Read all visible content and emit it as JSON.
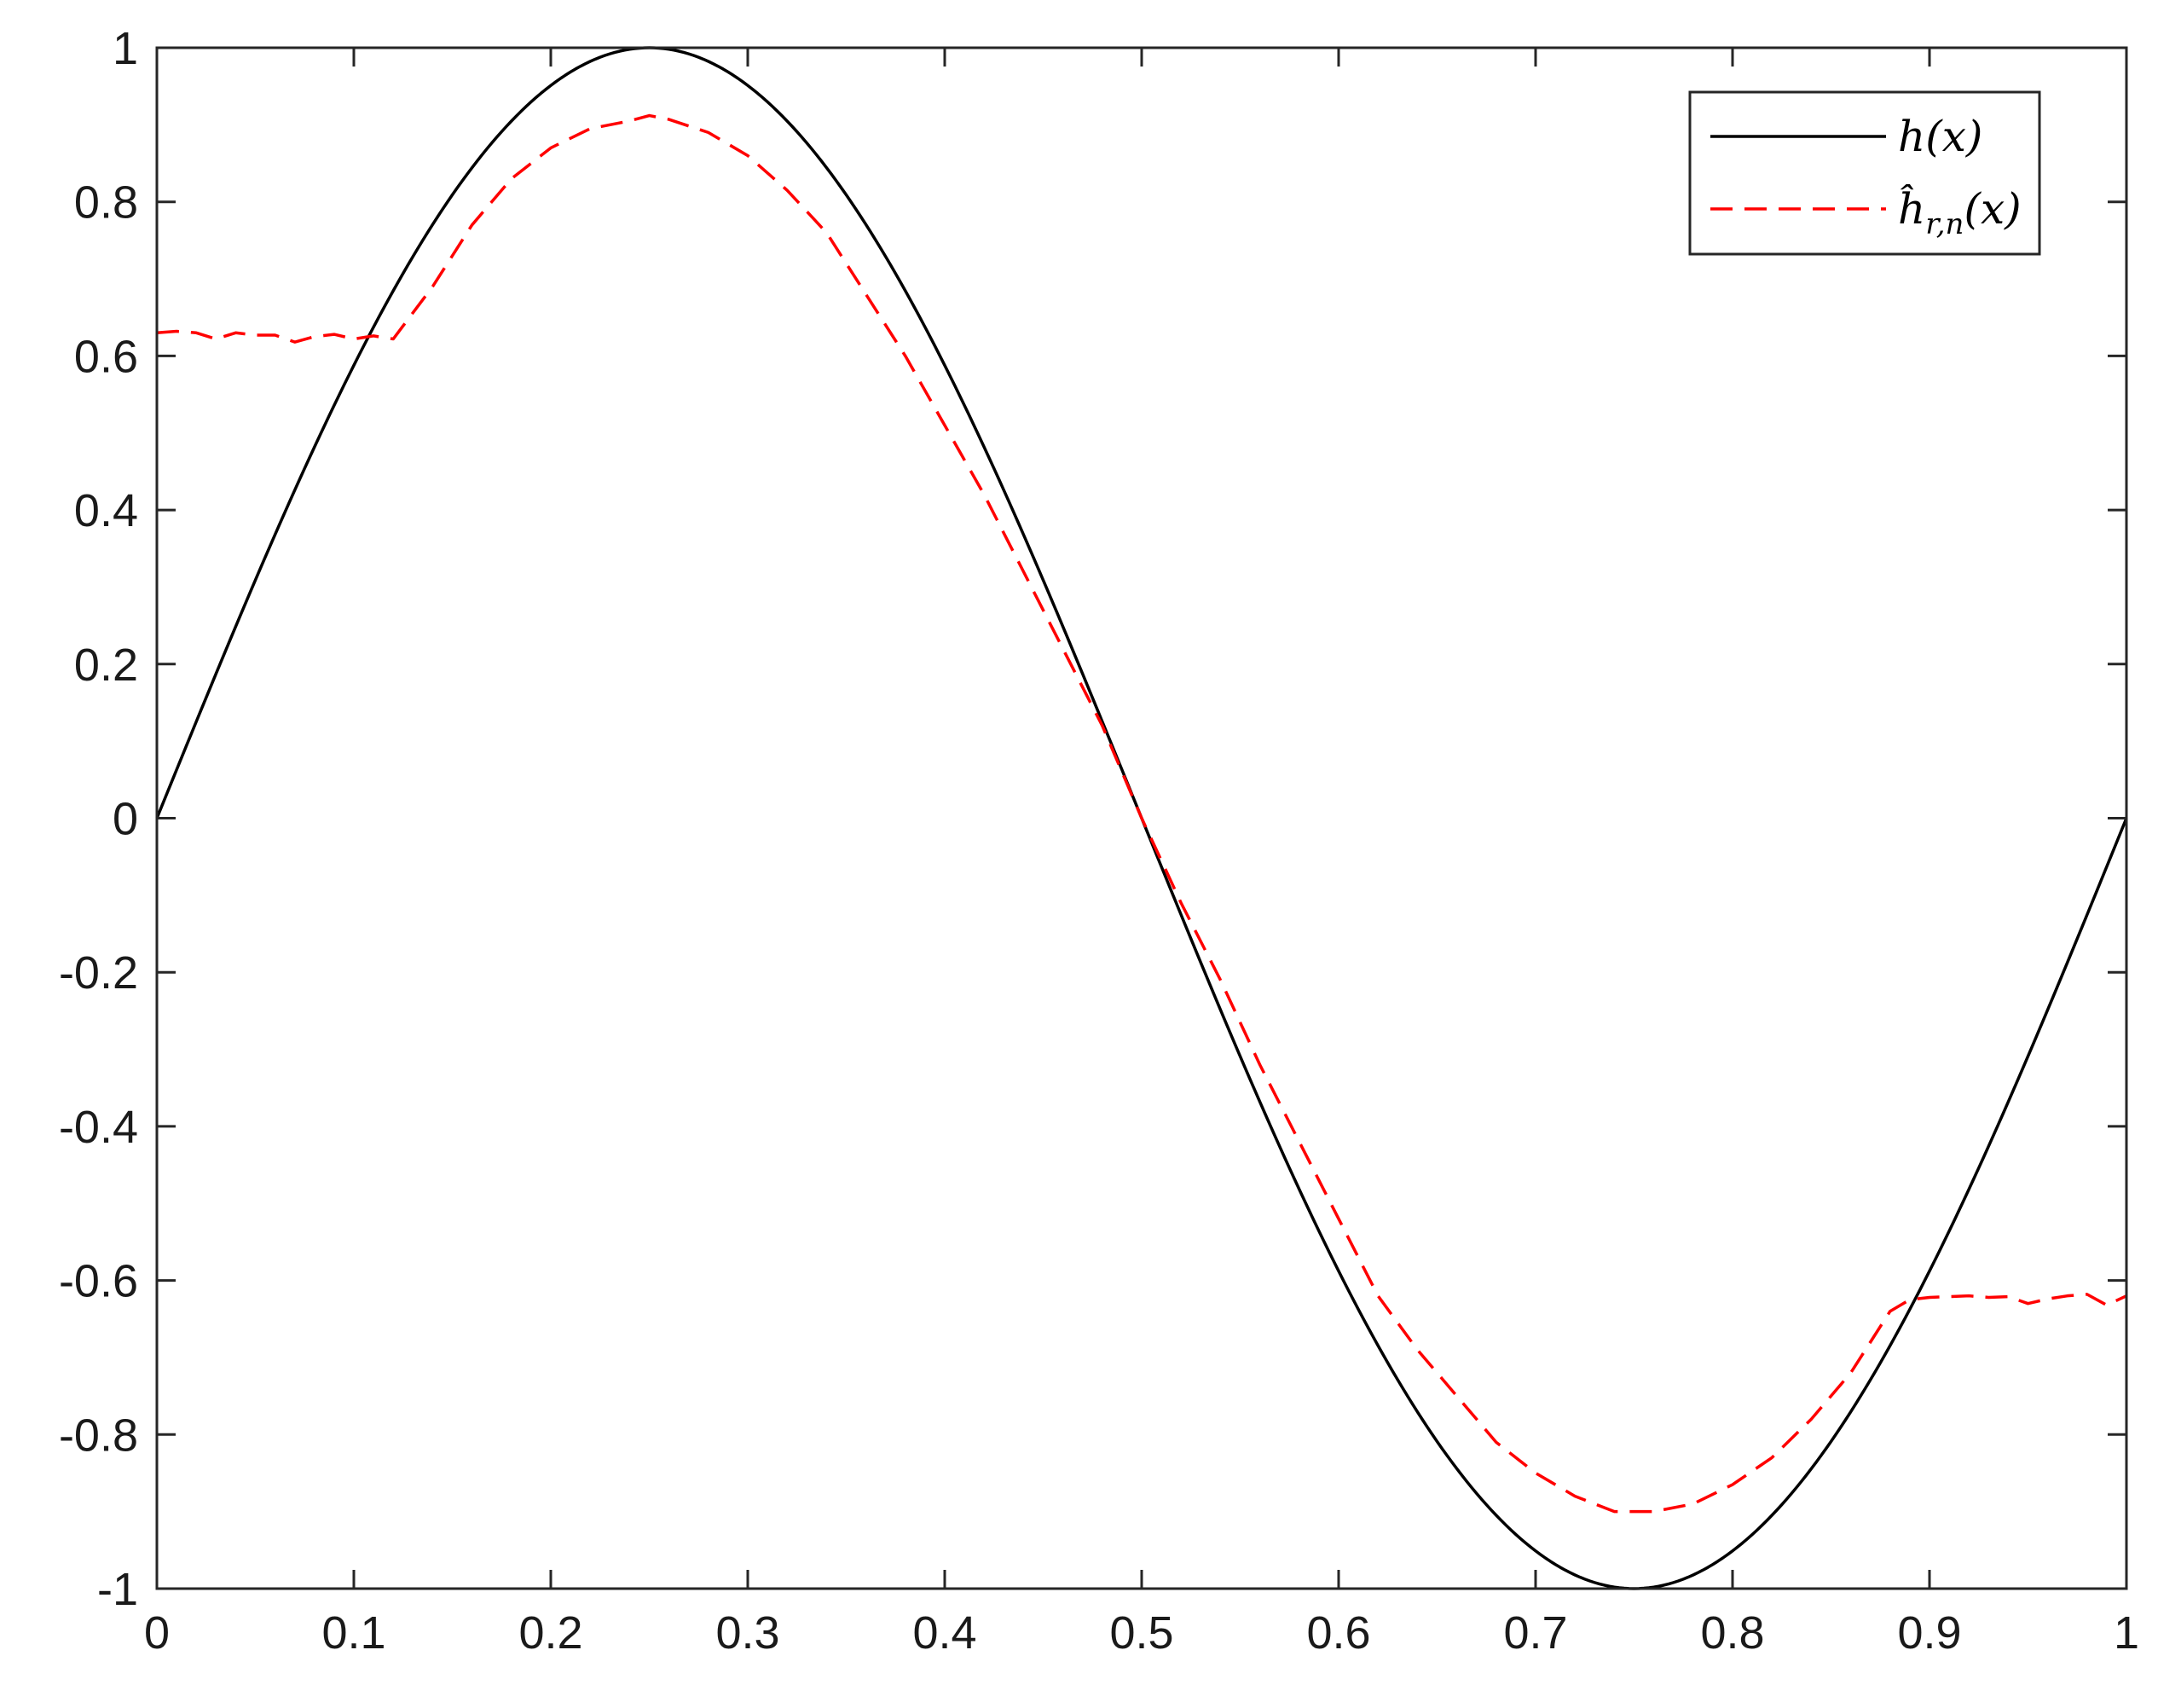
{
  "chart_data": {
    "type": "line",
    "title": "",
    "xlabel": "",
    "ylabel": "",
    "xlim": [
      0,
      1
    ],
    "ylim": [
      -1,
      1
    ],
    "grid": false,
    "legend_position": "top-right",
    "x_ticks": [
      "0",
      "0.1",
      "0.2",
      "0.3",
      "0.4",
      "0.5",
      "0.6",
      "0.7",
      "0.8",
      "0.9",
      "1"
    ],
    "y_ticks": [
      "-1",
      "-0.8",
      "-0.6",
      "-0.4",
      "-0.2",
      "0",
      "0.2",
      "0.4",
      "0.6",
      "0.8",
      "1"
    ],
    "series": [
      {
        "name": "h(x)",
        "color": "#000000",
        "style": "solid",
        "function": "sin(2*pi*x)",
        "x": [
          0,
          0.025,
          0.05,
          0.075,
          0.1,
          0.125,
          0.15,
          0.175,
          0.2,
          0.225,
          0.25,
          0.275,
          0.3,
          0.325,
          0.35,
          0.375,
          0.4,
          0.425,
          0.45,
          0.475,
          0.5,
          0.525,
          0.55,
          0.575,
          0.6,
          0.625,
          0.65,
          0.675,
          0.7,
          0.725,
          0.75,
          0.775,
          0.8,
          0.825,
          0.85,
          0.875,
          0.9,
          0.925,
          0.95,
          0.975,
          1
        ],
        "y": [
          0,
          0.156,
          0.309,
          0.454,
          0.588,
          0.707,
          0.809,
          0.891,
          0.951,
          0.988,
          1,
          0.988,
          0.951,
          0.891,
          0.809,
          0.707,
          0.588,
          0.454,
          0.309,
          0.156,
          0,
          -0.156,
          -0.309,
          -0.454,
          -0.588,
          -0.707,
          -0.809,
          -0.891,
          -0.951,
          -0.988,
          -1,
          -0.988,
          -0.951,
          -0.891,
          -0.809,
          -0.707,
          -0.588,
          -0.454,
          -0.309,
          -0.156,
          0
        ]
      },
      {
        "name": "ĥr,n(x)",
        "color": "#ff0000",
        "style": "dashed",
        "x": [
          0,
          0.01,
          0.02,
          0.03,
          0.04,
          0.05,
          0.06,
          0.07,
          0.08,
          0.09,
          0.1,
          0.11,
          0.12,
          0.14,
          0.16,
          0.18,
          0.2,
          0.22,
          0.24,
          0.25,
          0.26,
          0.28,
          0.3,
          0.32,
          0.34,
          0.36,
          0.38,
          0.4,
          0.42,
          0.44,
          0.46,
          0.48,
          0.5,
          0.52,
          0.54,
          0.56,
          0.58,
          0.6,
          0.62,
          0.64,
          0.66,
          0.68,
          0.7,
          0.72,
          0.74,
          0.75,
          0.76,
          0.78,
          0.8,
          0.82,
          0.84,
          0.86,
          0.88,
          0.89,
          0.9,
          0.91,
          0.92,
          0.93,
          0.94,
          0.95,
          0.96,
          0.97,
          0.98,
          0.99,
          1
        ],
        "y": [
          0.63,
          0.632,
          0.63,
          0.622,
          0.63,
          0.627,
          0.627,
          0.618,
          0.625,
          0.628,
          0.622,
          0.626,
          0.622,
          0.69,
          0.77,
          0.83,
          0.87,
          0.895,
          0.905,
          0.912,
          0.907,
          0.89,
          0.86,
          0.815,
          0.76,
          0.68,
          0.6,
          0.51,
          0.42,
          0.32,
          0.22,
          0.12,
          0.0,
          -0.11,
          -0.21,
          -0.32,
          -0.42,
          -0.52,
          -0.62,
          -0.69,
          -0.75,
          -0.81,
          -0.85,
          -0.88,
          -0.9,
          -0.9,
          -0.9,
          -0.89,
          -0.865,
          -0.83,
          -0.78,
          -0.72,
          -0.64,
          -0.625,
          -0.622,
          -0.621,
          -0.62,
          -0.622,
          -0.621,
          -0.63,
          -0.624,
          -0.62,
          -0.618,
          -0.632,
          -0.62
        ]
      }
    ]
  }
}
